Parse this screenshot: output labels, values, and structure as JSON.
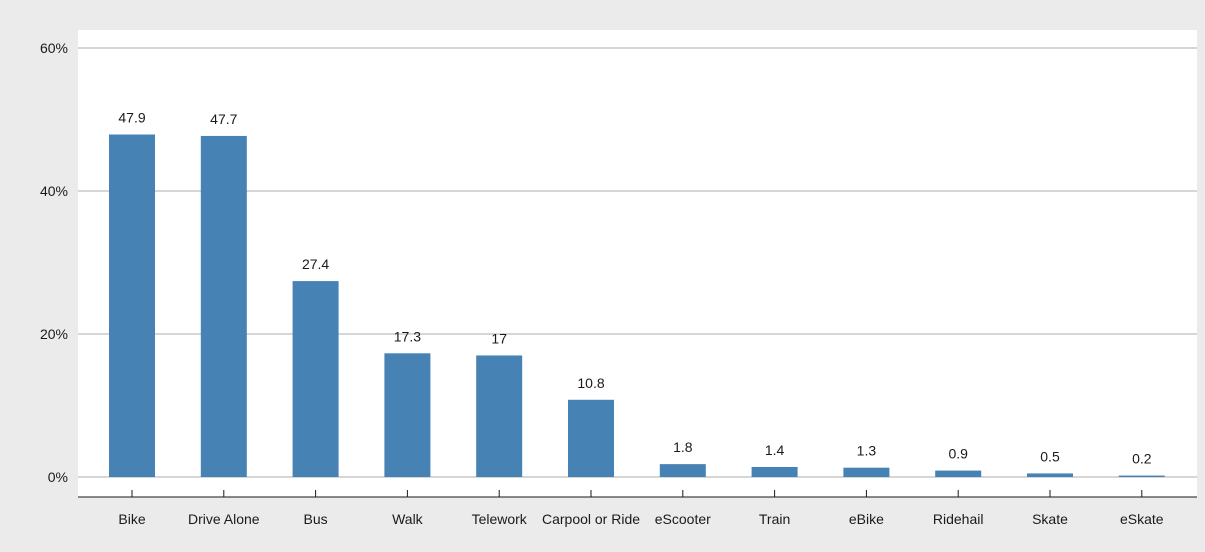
{
  "chart_data": {
    "type": "bar",
    "title": "",
    "xlabel": "",
    "ylabel": "",
    "categories": [
      "Bike",
      "Drive Alone",
      "Bus",
      "Walk",
      "Telework",
      "Carpool or Ride",
      "eScooter",
      "Train",
      "eBike",
      "Ridehail",
      "Skate",
      "eSkate"
    ],
    "values": [
      47.9,
      47.7,
      27.4,
      17.3,
      17,
      10.8,
      1.8,
      1.4,
      1.3,
      0.9,
      0.5,
      0.2
    ],
    "data_labels": [
      "47.9",
      "47.7",
      "27.4",
      "17.3",
      "17",
      "10.8",
      "1.8",
      "1.4",
      "1.3",
      "0.9",
      "0.5",
      "0.2"
    ],
    "y_ticks": [
      0,
      20,
      40,
      60
    ],
    "y_tick_labels": [
      "0%",
      "20%",
      "40%",
      "60%"
    ],
    "ylim": [
      0,
      60
    ],
    "grid": true,
    "legend": "none",
    "colors": {
      "bar": "#4682b4",
      "background": "#ebebeb",
      "plot_background": "#ffffff",
      "grid": "#c8c8c8",
      "text": "#1a1a1a"
    }
  }
}
